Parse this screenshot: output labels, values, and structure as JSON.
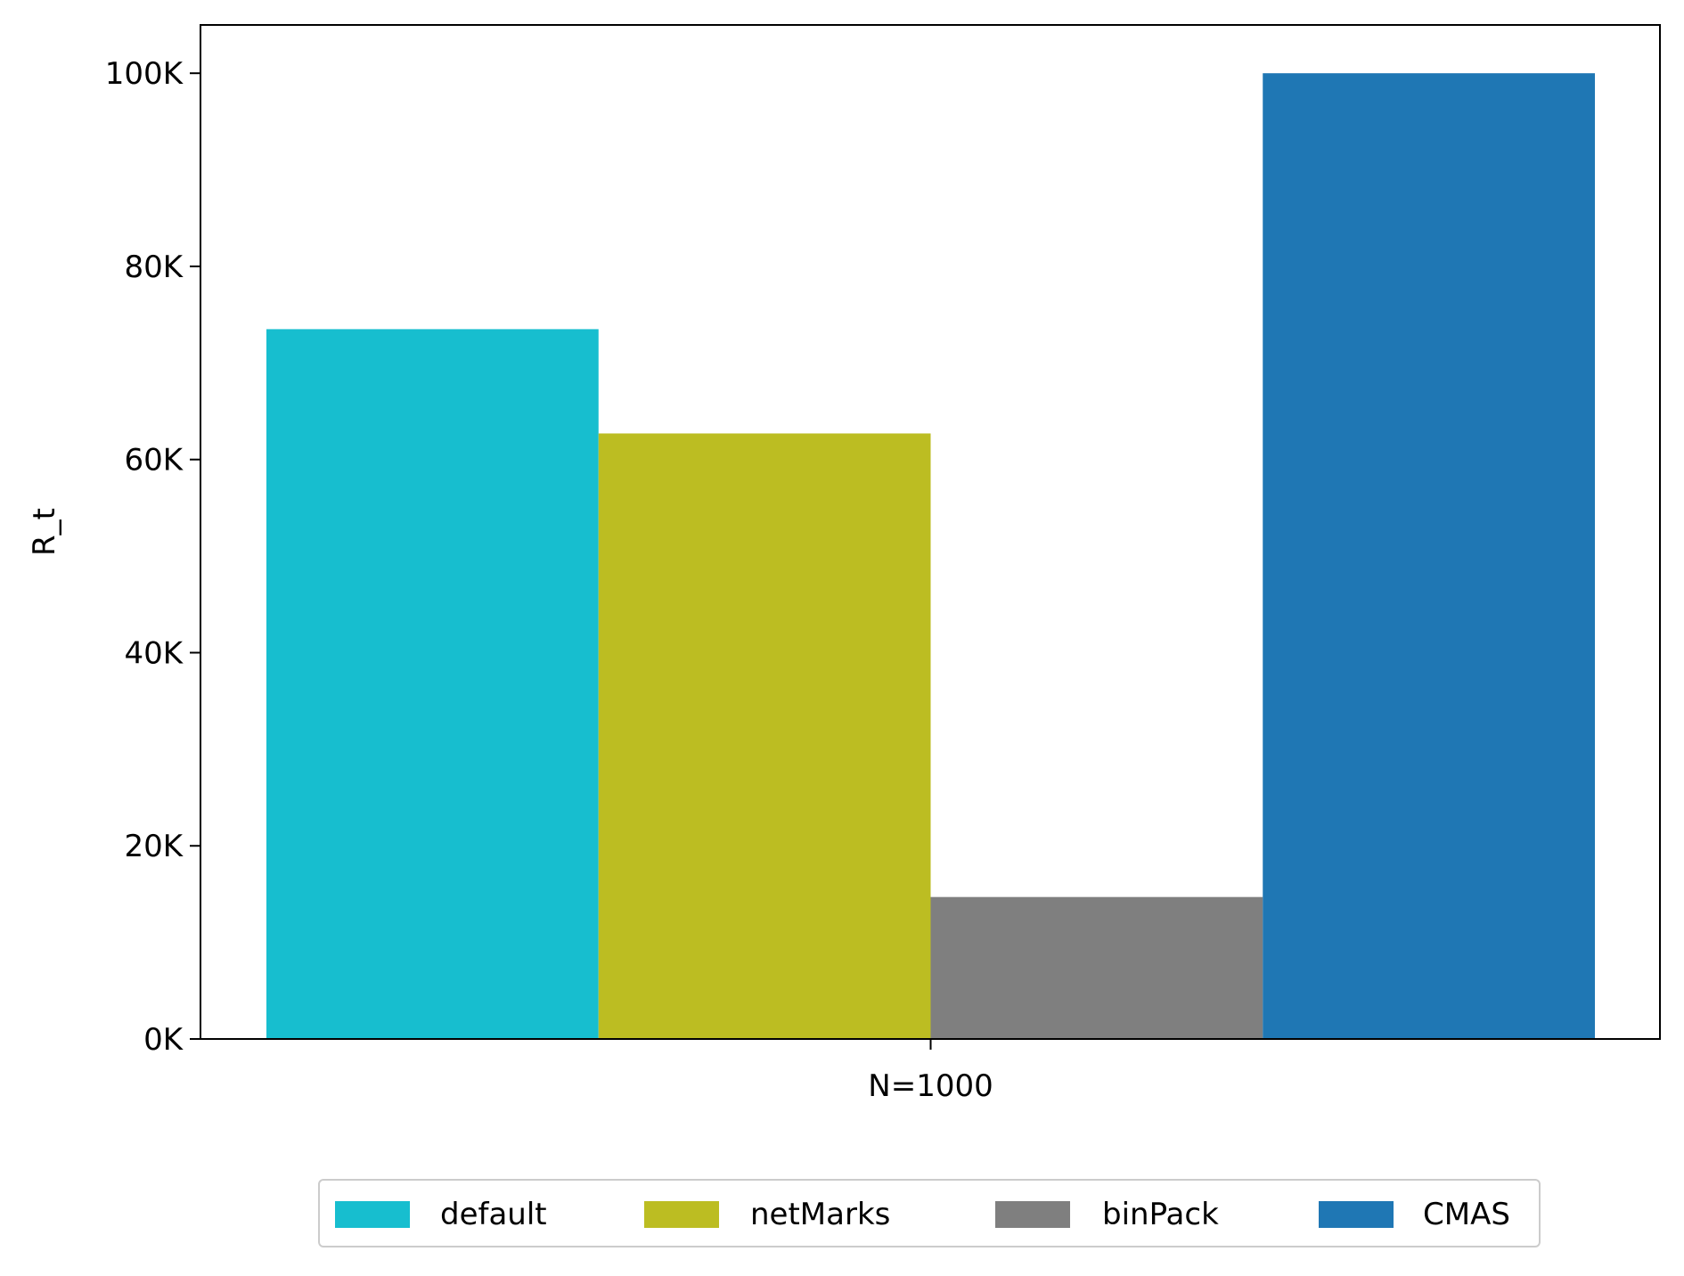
{
  "chart_data": {
    "type": "bar",
    "categories": [
      "N=1000"
    ],
    "series": [
      {
        "name": "default",
        "values": [
          73500
        ],
        "color": "#17becf"
      },
      {
        "name": "netMarks",
        "values": [
          62700
        ],
        "color": "#bcbd22"
      },
      {
        "name": "binPack",
        "values": [
          14700
        ],
        "color": "#7f7f7f"
      },
      {
        "name": "CMAS",
        "values": [
          100000
        ],
        "color": "#1f77b4"
      }
    ],
    "title": "",
    "xlabel": "",
    "ylabel": "R_t",
    "ylim": [
      0,
      105000
    ],
    "yticks": [
      {
        "value": 0,
        "label": "0K"
      },
      {
        "value": 20000,
        "label": "20K"
      },
      {
        "value": 40000,
        "label": "40K"
      },
      {
        "value": 60000,
        "label": "60K"
      },
      {
        "value": 80000,
        "label": "80K"
      },
      {
        "value": 100000,
        "label": "100K"
      }
    ],
    "grid": false,
    "legend": "bottom-center"
  }
}
